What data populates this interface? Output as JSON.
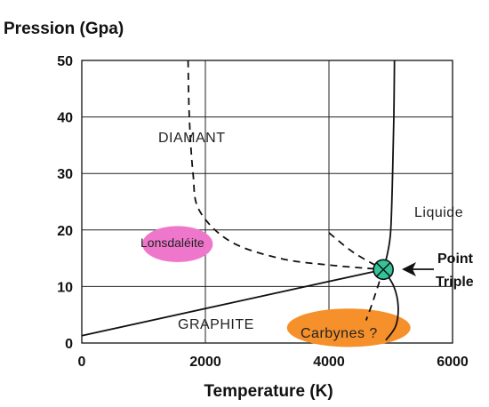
{
  "chart_data": {
    "type": "line",
    "ylabel": "Pression (Gpa)",
    "xlabel": "Temperature (K)",
    "xlim": [
      0,
      6000
    ],
    "ylim": [
      0,
      50
    ],
    "xticks": [
      "0",
      "2000",
      "4000",
      "6000"
    ],
    "yticks": [
      "0",
      "10",
      "20",
      "30",
      "40",
      "50"
    ],
    "grid": true,
    "regions": {
      "diamant": "DIAMANT",
      "graphite": "GRAPHITE",
      "liquide": "Liquide",
      "lonsdaleite": "Lonsdaléite",
      "carbynes": "Carbynes ?"
    },
    "triple_point": {
      "label_line1": "Point",
      "label_line2": "Triple",
      "x": 4880,
      "y": 13,
      "color": "#33c49a"
    },
    "series": [
      {
        "style": "solid",
        "values": [
          [
            0,
            1.3
          ],
          [
            4880,
            13
          ]
        ]
      },
      {
        "style": "solid",
        "values": [
          [
            4880,
            13
          ],
          [
            4950,
            16
          ],
          [
            5000,
            20
          ],
          [
            5030,
            30
          ],
          [
            5050,
            40
          ],
          [
            5060,
            50
          ]
        ]
      },
      {
        "style": "solid",
        "values": [
          [
            4880,
            13
          ],
          [
            5050,
            10
          ],
          [
            5120,
            6.5
          ],
          [
            5080,
            3
          ],
          [
            4920,
            0.5
          ]
        ]
      },
      {
        "style": "dashed",
        "values": [
          [
            1720,
            50
          ],
          [
            1740,
            40
          ],
          [
            1800,
            30
          ],
          [
            1900,
            23.5
          ],
          [
            2400,
            18
          ],
          [
            3200,
            15
          ],
          [
            4000,
            13.8
          ],
          [
            4880,
            13
          ]
        ]
      },
      {
        "style": "dashed",
        "values": [
          [
            4000,
            19.5
          ],
          [
            4400,
            16
          ],
          [
            4880,
            13
          ]
        ]
      },
      {
        "style": "dashed",
        "values": [
          [
            4880,
            13
          ],
          [
            4700,
            7
          ],
          [
            4600,
            4
          ]
        ]
      }
    ],
    "ellipses": [
      {
        "label": "Lonsdaléite",
        "color": "#ee77cc",
        "cx": 1550,
        "cy": 17.5,
        "rx": 570,
        "ry": 3.2
      },
      {
        "label": "Carbynes ?",
        "color": "#f5902a",
        "cx": 4320,
        "cy": 2.7,
        "rx": 1000,
        "ry": 3.4
      }
    ]
  }
}
